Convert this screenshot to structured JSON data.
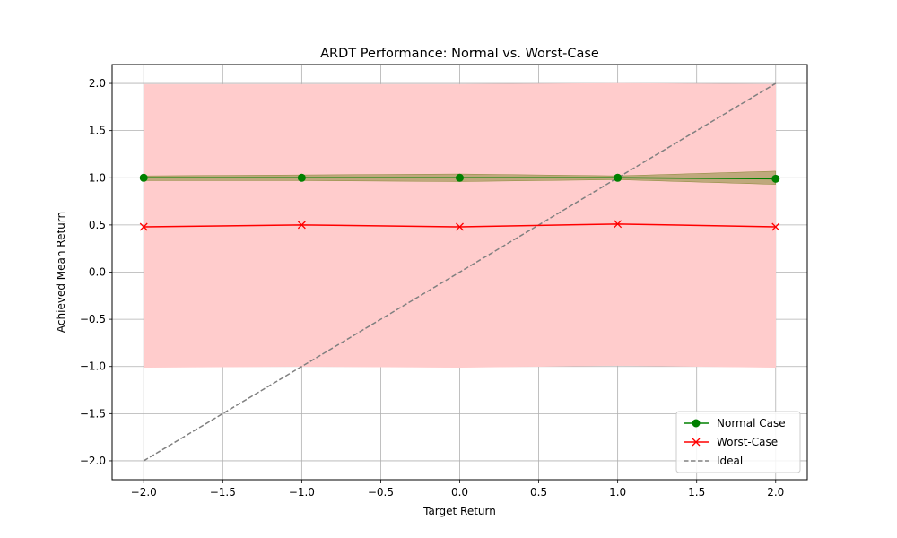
{
  "chart_data": {
    "type": "line",
    "title": "ARDT Performance: Normal vs. Worst-Case",
    "xlabel": "Target Return",
    "ylabel": "Achieved Mean Return",
    "xlim": [
      -2.2,
      2.2
    ],
    "ylim": [
      -2.2,
      2.2
    ],
    "xticks": [
      -2.0,
      -1.5,
      -1.0,
      -0.5,
      0.0,
      0.5,
      1.0,
      1.5,
      2.0
    ],
    "yticks": [
      -2.0,
      -1.5,
      -1.0,
      -0.5,
      0.0,
      0.5,
      1.0,
      1.5,
      2.0
    ],
    "xtick_labels": [
      "−2.0",
      "−1.5",
      "−1.0",
      "−0.5",
      "0.0",
      "0.5",
      "1.0",
      "1.5",
      "2.0"
    ],
    "ytick_labels": [
      "−2.0",
      "−1.5",
      "−1.0",
      "−0.5",
      "0.0",
      "0.5",
      "1.0",
      "1.5",
      "2.0"
    ],
    "grid": true,
    "legend_position": "lower-right",
    "x": [
      -2.0,
      -1.0,
      0.0,
      1.0,
      2.0
    ],
    "series": [
      {
        "name": "Normal Case",
        "values": [
          1.0,
          1.0,
          1.0,
          1.0,
          0.99
        ],
        "band_lower": [
          0.97,
          0.97,
          0.96,
          0.98,
          0.93
        ],
        "band_upper": [
          1.02,
          1.03,
          1.04,
          1.02,
          1.07
        ],
        "color": "#008000",
        "band_color": "#8b8b3a",
        "marker": "circle",
        "linestyle": "solid"
      },
      {
        "name": "Worst-Case",
        "values": [
          0.48,
          0.5,
          0.48,
          0.51,
          0.48
        ],
        "band_lower": [
          -1.01,
          -1.0,
          -1.01,
          -0.99,
          -1.01
        ],
        "band_upper": [
          1.99,
          1.99,
          1.99,
          2.0,
          1.99
        ],
        "color": "#ff0000",
        "band_color": "#ffcccc",
        "marker": "x",
        "linestyle": "solid"
      },
      {
        "name": "Ideal",
        "x": [
          -2.0,
          2.0
        ],
        "values": [
          -2.0,
          2.0
        ],
        "color": "#808080",
        "marker": "none",
        "linestyle": "dashed"
      }
    ]
  }
}
